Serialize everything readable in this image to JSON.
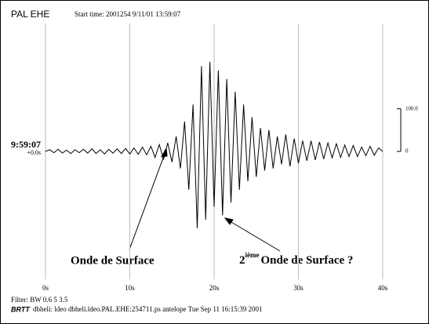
{
  "chart_data": {
    "type": "line",
    "title": "PAL EHE",
    "subtitle": "Start time: 2001254  9/11/01 13:59:07",
    "start_label": "9:59:07",
    "offset_label": "+0.0s",
    "x": [
      0,
      0.5,
      1,
      1.5,
      2,
      2.5,
      3,
      3.5,
      4,
      4.5,
      5,
      5.5,
      6,
      6.5,
      7,
      7.5,
      8,
      8.5,
      9,
      9.5,
      10,
      10.5,
      11,
      11.5,
      12,
      12.5,
      13,
      13.5,
      14,
      14.5,
      15,
      15.5,
      16,
      16.5,
      17,
      17.5,
      18,
      18.5,
      19,
      19.5,
      20,
      20.5,
      21,
      21.5,
      22,
      22.5,
      23,
      23.5,
      24,
      24.5,
      25,
      25.5,
      26,
      26.5,
      27,
      27.5,
      28,
      28.5,
      29,
      29.5,
      30,
      30.5,
      31,
      31.5,
      32,
      32.5,
      33,
      33.5,
      34,
      34.5,
      35,
      35.5,
      36,
      36.5,
      37,
      37.5,
      38,
      38.5,
      39,
      39.5,
      40
    ],
    "values": [
      0,
      4,
      -3,
      5,
      -4,
      3,
      -5,
      4,
      -3,
      5,
      -4,
      6,
      -5,
      4,
      -6,
      5,
      -4,
      6,
      -5,
      7,
      -6,
      8,
      -7,
      10,
      -8,
      12,
      -14,
      16,
      -18,
      20,
      -25,
      35,
      -40,
      70,
      -90,
      110,
      -180,
      200,
      -160,
      210,
      -130,
      190,
      -150,
      170,
      -120,
      140,
      -90,
      110,
      -70,
      80,
      -60,
      55,
      -45,
      50,
      -40,
      35,
      -30,
      40,
      -35,
      30,
      -28,
      25,
      -22,
      25,
      -20,
      22,
      -18,
      20,
      -15,
      18,
      -14,
      15,
      -12,
      14,
      -12,
      10,
      -10,
      12,
      -9,
      8,
      0
    ],
    "color": "#000000",
    "xlim": [
      0,
      40
    ],
    "xticks": [
      {
        "value": 0,
        "label": "0s"
      },
      {
        "value": 10,
        "label": "10s"
      },
      {
        "value": 20,
        "label": "20s"
      },
      {
        "value": 30,
        "label": "30s"
      },
      {
        "value": 40,
        "label": "40s"
      }
    ],
    "ylim": [
      -300,
      300
    ],
    "yticks": [
      0,
      {
        "value": 100,
        "label": "100.0"
      }
    ],
    "grid": true,
    "annotations": [
      {
        "text": "Onde de Surface"
      },
      {
        "number": "2",
        "superscript": "ième",
        "text": "Onde de Surface ?"
      }
    ],
    "footer": {
      "filter": "Filter: BW 0.6 5 3.5",
      "brtt": "BRTT",
      "info": "dbheli: ldeo dbheli.ldeo.PAL.EHE:254711.ps antelope Tue Sep 11 16:15:39 2001"
    }
  }
}
